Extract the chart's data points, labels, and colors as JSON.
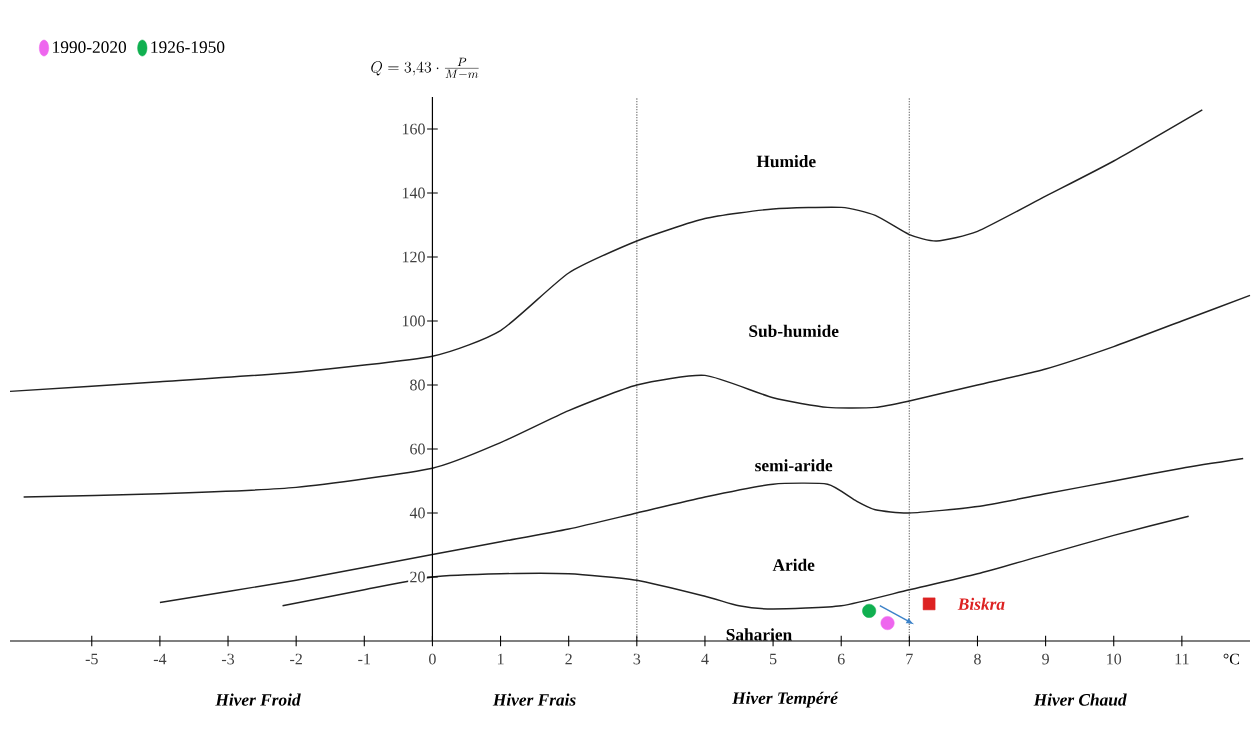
{
  "chart_data": {
    "type": "line",
    "title": "Q = 3{,}43 \\cdot \\frac{P}{M - m}",
    "xlabel": "°C",
    "xlim": [
      -6.2,
      12
    ],
    "ylim": [
      0,
      170
    ],
    "xticks": [
      -5,
      -4,
      -3,
      -2,
      -1,
      0,
      1,
      2,
      3,
      4,
      5,
      6,
      7,
      8,
      9,
      10,
      11
    ],
    "yticks": [
      20,
      40,
      60,
      80,
      100,
      120,
      140,
      160
    ],
    "grid": false,
    "legend": "top left",
    "marker": "none",
    "ref_lines": [
      {
        "axis": "x",
        "value": 3,
        "color": "#888888",
        "line_style": "dotted"
      },
      {
        "axis": "x",
        "value": 7,
        "color": "#888888",
        "line_style": "dotted"
      }
    ],
    "series": [
      {
        "color": "#222222",
        "x": [
          -6.2,
          -4,
          -2,
          0,
          1,
          2,
          3,
          4,
          5,
          6,
          6.5,
          7,
          7.4,
          8,
          9,
          10,
          11.3
        ],
        "values": [
          78,
          81,
          84,
          89,
          97,
          115,
          125,
          132,
          135,
          135.5,
          133,
          127,
          125,
          128,
          139,
          150,
          166
        ]
      },
      {
        "color": "#222222",
        "x": [
          -6,
          -4,
          -2,
          0,
          1,
          2,
          3,
          4,
          5,
          5.8,
          6.5,
          7,
          8,
          9,
          10,
          11,
          12
        ],
        "values": [
          45,
          46,
          48,
          54,
          62,
          72,
          80,
          83,
          76,
          73,
          73,
          75,
          80,
          85,
          92,
          100,
          108
        ]
      },
      {
        "color": "#222222",
        "x": [
          -4,
          -2,
          0,
          1,
          2,
          3,
          4,
          5,
          5.8,
          6.2,
          6.5,
          7,
          8,
          9,
          10,
          11,
          11.9
        ],
        "values": [
          12,
          19,
          27,
          31,
          35,
          40,
          45,
          49,
          49,
          44,
          41,
          40,
          42,
          46,
          50,
          54,
          57
        ]
      },
      {
        "color": "#222222",
        "x": [
          -2.2,
          -1,
          0,
          1,
          2,
          3,
          4,
          4.5,
          5,
          6,
          7,
          8,
          9,
          10,
          11.1
        ],
        "values": [
          11,
          16,
          20,
          21,
          21,
          19,
          14,
          11,
          10,
          11,
          16,
          21,
          27,
          33,
          39
        ]
      },
      {
        "type": "scatter",
        "name": "1990-2020",
        "color": "#ee66ee",
        "marker": "circle",
        "x": [
          6.68
        ],
        "values": [
          5.6
        ]
      },
      {
        "type": "scatter",
        "name": "1926-1950",
        "color": "#10b050",
        "marker": "circle",
        "x": [
          6.41
        ],
        "values": [
          9.4
        ]
      },
      {
        "type": "scatter",
        "name": "Biskra",
        "color": "#dd2222",
        "marker": "square",
        "x": [
          7.29
        ],
        "values": [
          11.6
        ]
      }
    ],
    "annotations": [
      "Humide",
      "Sub-humide",
      "semi-aride",
      "Aride",
      "Saharien",
      "Hiver Froid",
      "Hiver Frais",
      "Hiver Tempéré",
      "Hiver Chaud"
    ]
  }
}
